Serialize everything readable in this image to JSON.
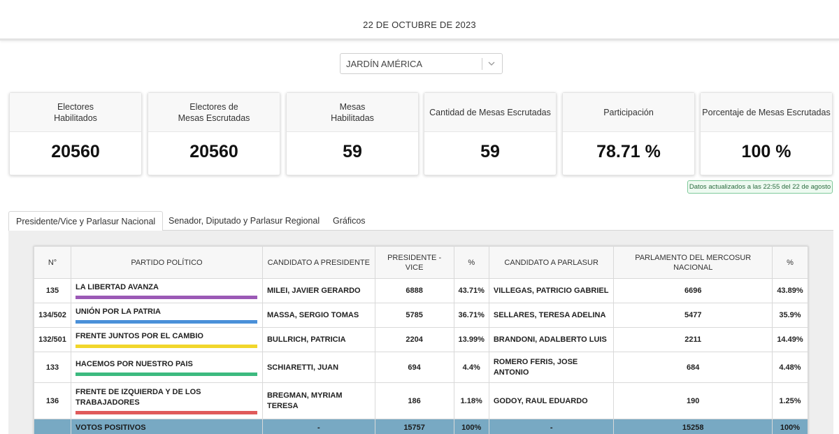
{
  "header": {
    "date": "22 DE OCTUBRE DE 2023"
  },
  "location_select": {
    "value": "JARDÍN AMÉRICA"
  },
  "stats": [
    {
      "label": "Electores\nHabilitados",
      "value": "20560"
    },
    {
      "label": "Electores de\nMesas Escrutadas",
      "value": "20560"
    },
    {
      "label": "Mesas\nHabilitadas",
      "value": "59"
    },
    {
      "label": "Cantidad de Mesas Escrutadas",
      "value": "59"
    },
    {
      "label": "Participación",
      "value": "78.71 %"
    },
    {
      "label": "Porcentaje de Mesas Escrutadas",
      "value": "100 %"
    }
  ],
  "updated_badge": "Datos actualizados a las 22:55 del 22 de agosto",
  "tabs": [
    {
      "label": "Presidente/Vice y Parlasur Nacional"
    },
    {
      "label": "Senador, Diputado y Parlasur Regional"
    },
    {
      "label": "Gráficos"
    }
  ],
  "table": {
    "headers": [
      "N°",
      "PARTIDO POLÍTICO",
      "CANDIDATO A PRESIDENTE",
      "PRESIDENTE - VICE",
      "%",
      "CANDIDATO A PARLASUR",
      "PARLAMENTO DEL MERCOSUR NACIONAL",
      "%"
    ],
    "rows": [
      {
        "num": "135",
        "party": "LA LIBERTAD AVANZA",
        "color": "#9b59b6",
        "president": "MILEI, JAVIER GERARDO",
        "votes": "6888",
        "pct": "43.71%",
        "parlasur": "VILLEGAS, PATRICIO GABRIEL",
        "parl_votes": "6696",
        "parl_pct": "43.89%"
      },
      {
        "num": "134/502",
        "party": "UNIÓN POR LA PATRIA",
        "color": "#4a90d9",
        "president": "MASSA, SERGIO TOMAS",
        "votes": "5785",
        "pct": "36.71%",
        "parlasur": "SELLARES, TERESA ADELINA",
        "parl_votes": "5477",
        "parl_pct": "35.9%"
      },
      {
        "num": "132/501",
        "party": "FRENTE JUNTOS POR EL CAMBIO",
        "color": "#f1d62b",
        "president": "BULLRICH, PATRICIA",
        "votes": "2204",
        "pct": "13.99%",
        "parlasur": "BRANDONI, ADALBERTO LUIS",
        "parl_votes": "2211",
        "parl_pct": "14.49%"
      },
      {
        "num": "133",
        "party": "HACEMOS POR NUESTRO PAIS",
        "color": "#3cba7f",
        "president": "SCHIARETTI, JUAN",
        "votes": "694",
        "pct": "4.4%",
        "parlasur": "ROMERO FERIS, JOSE ANTONIO",
        "parl_votes": "684",
        "parl_pct": "4.48%"
      },
      {
        "num": "136",
        "party": "FRENTE DE IZQUIERDA Y DE LOS TRABAJADORES",
        "color": "#e05a5a",
        "president": "BREGMAN, MYRIAM TERESA",
        "votes": "186",
        "pct": "1.18%",
        "parlasur": "GODOY, RAUL EDUARDO",
        "parl_votes": "190",
        "parl_pct": "1.25%"
      }
    ],
    "total": {
      "label": "VOTOS POSITIVOS",
      "president": "-",
      "votes": "15757",
      "pct": "100%",
      "parlasur": "-",
      "parl_votes": "15258",
      "parl_pct": "100%"
    }
  }
}
